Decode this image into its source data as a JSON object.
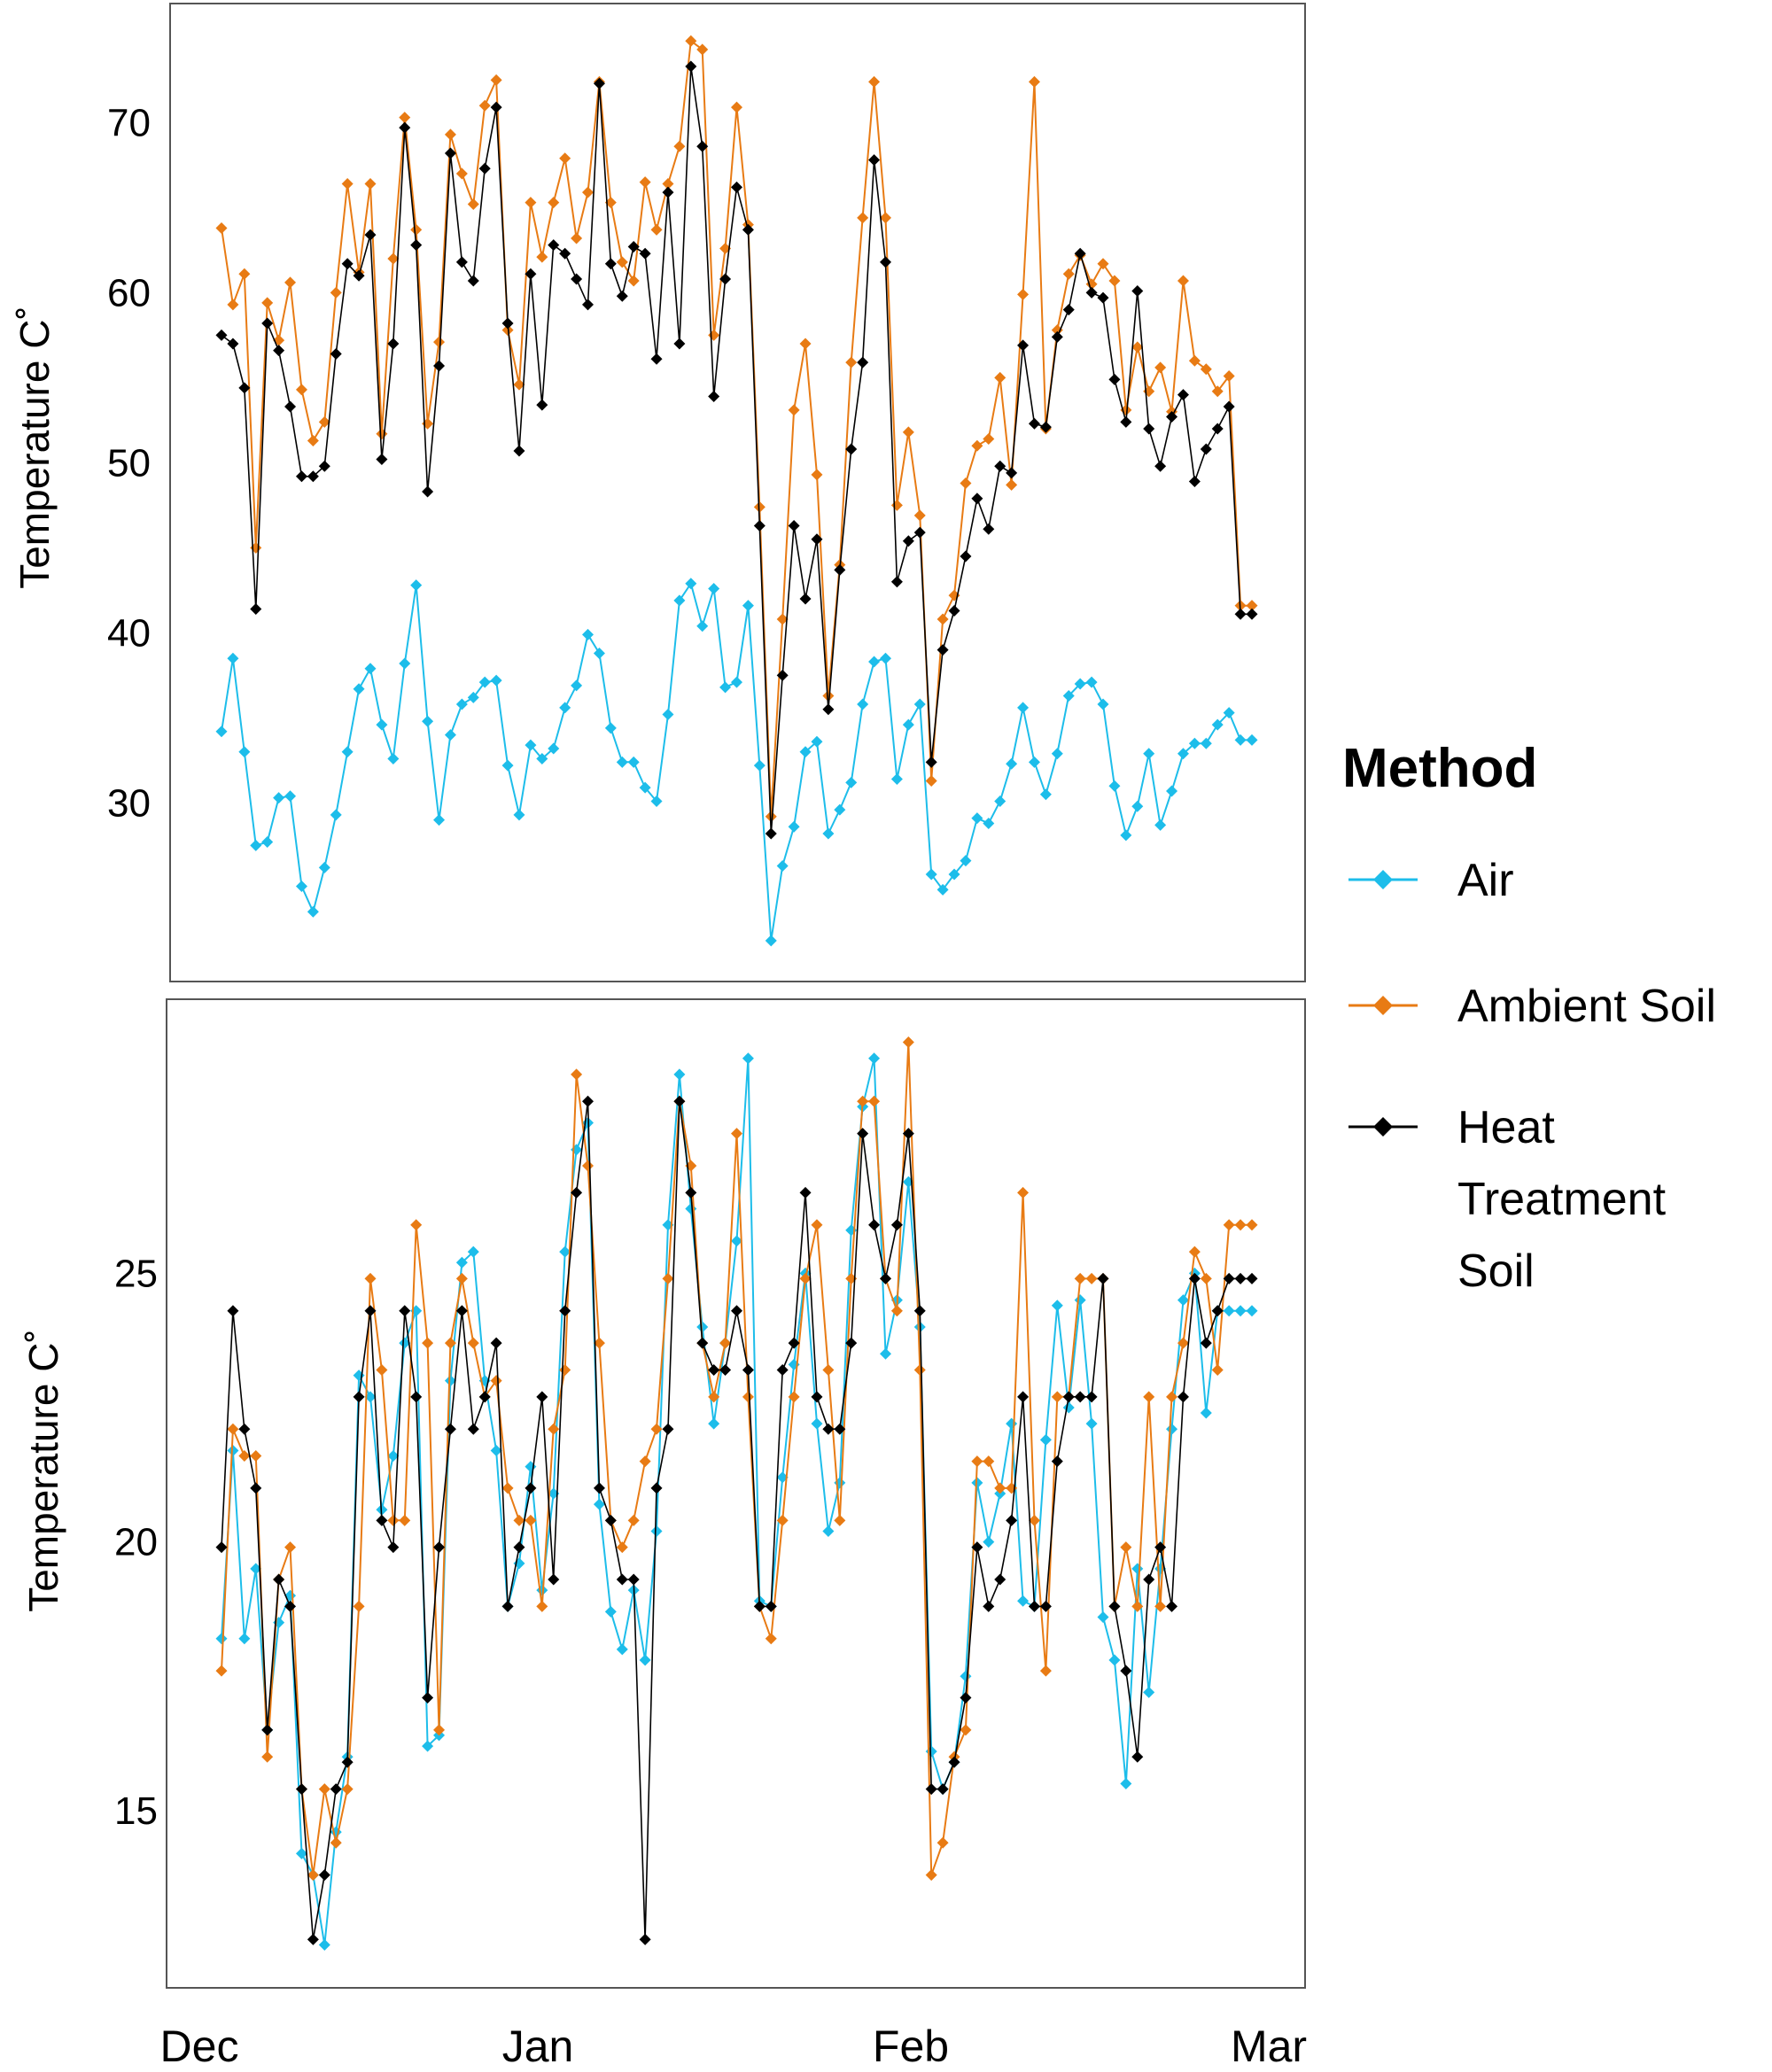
{
  "legend": {
    "title": "Method",
    "items": [
      {
        "lines": [
          "Air"
        ],
        "color": "#1DBDEA",
        "icon": "diamond-marker"
      },
      {
        "lines": [
          "Ambient Soil"
        ],
        "color": "#E87B14",
        "icon": "diamond-marker"
      },
      {
        "lines": [
          "Heat",
          "Treatment",
          "Soil"
        ],
        "color": "#000000",
        "icon": "diamond-marker"
      }
    ]
  },
  "x_axis": {
    "ticks": [
      "Dec",
      "Jan",
      "Feb",
      "Mar"
    ]
  },
  "chart_data": [
    {
      "type": "line",
      "panel": "top",
      "ylabel": "Temperature C˚",
      "yticks": [
        30,
        40,
        50,
        60,
        70
      ],
      "ylim": [
        19.5,
        77
      ],
      "x_days": [
        0,
        1,
        2,
        3,
        4,
        5,
        6,
        7,
        8,
        9,
        10,
        11,
        12,
        13,
        14,
        15,
        16,
        17,
        18,
        19,
        20,
        21,
        22,
        23,
        24,
        25,
        26,
        27,
        28,
        29,
        30,
        31,
        32,
        33,
        34,
        35,
        36,
        37,
        38,
        39,
        40,
        41,
        42,
        43,
        44,
        45,
        46,
        47,
        48,
        49,
        50,
        51,
        52,
        53,
        54,
        55,
        56,
        57,
        58,
        59,
        60,
        61,
        62,
        63,
        64,
        65,
        66,
        67,
        68,
        69,
        70,
        71,
        72,
        73,
        74,
        75,
        76,
        77,
        78,
        79,
        80,
        81,
        82,
        83,
        84,
        85,
        86,
        87,
        88,
        89,
        90
      ],
      "series": [
        {
          "name": "Air",
          "color": "#1DBDEA",
          "values": [
            34.2,
            38.5,
            33.0,
            27.5,
            27.7,
            30.3,
            30.4,
            25.1,
            23.6,
            26.2,
            29.3,
            33.0,
            36.7,
            37.9,
            34.6,
            32.6,
            38.2,
            42.8,
            34.8,
            29.0,
            34.0,
            35.8,
            36.2,
            37.1,
            37.2,
            32.2,
            29.3,
            33.4,
            32.6,
            33.2,
            35.6,
            36.9,
            39.9,
            38.8,
            34.4,
            32.4,
            32.4,
            30.9,
            30.1,
            35.2,
            41.9,
            42.9,
            40.4,
            42.6,
            36.8,
            37.1,
            41.6,
            32.2,
            21.9,
            26.3,
            28.6,
            33.0,
            33.6,
            28.2,
            29.6,
            31.2,
            35.8,
            38.3,
            38.5,
            31.4,
            34.6,
            35.8,
            25.8,
            24.9,
            25.8,
            26.6,
            29.1,
            28.8,
            30.1,
            32.3,
            35.6,
            32.4,
            30.5,
            32.9,
            36.3,
            37.0,
            37.1,
            35.8,
            31.0,
            28.1,
            29.8,
            32.9,
            28.7,
            30.7,
            32.9,
            33.5,
            33.5,
            34.6,
            35.3,
            33.7,
            33.7
          ]
        },
        {
          "name": "Ambient Soil",
          "color": "#E87B14",
          "values": [
            63.8,
            59.3,
            61.1,
            45.0,
            59.4,
            57.2,
            60.6,
            54.3,
            51.3,
            52.4,
            60.0,
            66.4,
            61.2,
            66.4,
            51.7,
            62.0,
            70.3,
            63.7,
            52.3,
            57.1,
            69.3,
            67.0,
            65.2,
            71.0,
            72.5,
            57.8,
            54.6,
            65.3,
            62.1,
            65.3,
            67.9,
            63.2,
            65.9,
            72.4,
            65.3,
            61.8,
            60.7,
            66.5,
            63.7,
            66.4,
            68.6,
            74.8,
            74.3,
            57.5,
            62.6,
            70.9,
            64.0,
            47.4,
            29.2,
            40.8,
            53.1,
            57.0,
            49.3,
            36.3,
            44.0,
            55.9,
            64.4,
            72.4,
            64.4,
            47.5,
            51.8,
            46.9,
            31.3,
            40.8,
            42.2,
            48.8,
            51.0,
            51.4,
            55.0,
            48.7,
            59.9,
            72.4,
            52.0,
            57.8,
            61.1,
            62.2,
            60.5,
            61.7,
            60.7,
            53.1,
            56.8,
            54.2,
            55.6,
            53.0,
            60.7,
            56.0,
            55.5,
            54.2,
            55.1,
            41.6,
            41.6
          ]
        },
        {
          "name": "Heat Treatment Soil",
          "color": "#000000",
          "values": [
            57.5,
            57.0,
            54.4,
            41.4,
            58.2,
            56.6,
            53.3,
            49.2,
            49.2,
            49.8,
            56.4,
            61.7,
            61.0,
            63.4,
            50.2,
            57.0,
            69.7,
            62.8,
            48.3,
            55.7,
            68.2,
            61.8,
            60.7,
            67.3,
            70.9,
            58.2,
            50.7,
            61.1,
            53.4,
            62.8,
            62.3,
            60.8,
            59.3,
            72.3,
            61.7,
            59.8,
            62.7,
            62.3,
            56.1,
            65.9,
            57.0,
            73.3,
            68.6,
            53.9,
            60.8,
            66.2,
            63.7,
            46.3,
            28.2,
            37.5,
            46.3,
            42.0,
            45.5,
            35.5,
            43.7,
            50.8,
            55.9,
            67.8,
            61.8,
            43.0,
            45.4,
            45.9,
            32.4,
            39.0,
            41.3,
            44.5,
            47.9,
            46.1,
            49.8,
            49.4,
            56.9,
            52.3,
            52.1,
            57.4,
            59.0,
            62.3,
            60.0,
            59.7,
            54.9,
            52.4,
            60.1,
            52.0,
            49.8,
            52.7,
            54.0,
            48.9,
            50.8,
            52.0,
            53.3,
            41.1,
            41.1
          ]
        }
      ]
    },
    {
      "type": "line",
      "panel": "bottom",
      "ylabel": "Temperature C˚",
      "yticks": [
        15,
        20,
        25
      ],
      "ylim": [
        11.7,
        30.1
      ],
      "x_days": [
        0,
        1,
        2,
        3,
        4,
        5,
        6,
        7,
        8,
        9,
        10,
        11,
        12,
        13,
        14,
        15,
        16,
        17,
        18,
        19,
        20,
        21,
        22,
        23,
        24,
        25,
        26,
        27,
        28,
        29,
        30,
        31,
        32,
        33,
        34,
        35,
        36,
        37,
        38,
        39,
        40,
        41,
        42,
        43,
        44,
        45,
        46,
        47,
        48,
        49,
        50,
        51,
        52,
        53,
        54,
        55,
        56,
        57,
        58,
        59,
        60,
        61,
        62,
        63,
        64,
        65,
        66,
        67,
        68,
        69,
        70,
        71,
        72,
        73,
        74,
        75,
        76,
        77,
        78,
        79,
        80,
        81,
        82,
        83,
        84,
        85,
        86,
        87,
        88,
        89,
        90
      ],
      "series": [
        {
          "name": "Air",
          "color": "#1DBDEA",
          "values": [
            18.2,
            21.7,
            18.2,
            19.5,
            16.5,
            18.5,
            19.0,
            14.2,
            13.8,
            12.5,
            14.6,
            16.0,
            23.1,
            22.7,
            20.6,
            21.6,
            23.7,
            24.3,
            16.2,
            16.4,
            23.0,
            25.2,
            25.4,
            23.0,
            21.7,
            18.8,
            19.6,
            21.4,
            19.1,
            20.9,
            25.4,
            27.3,
            27.8,
            20.7,
            18.7,
            18.0,
            19.1,
            17.8,
            20.2,
            25.9,
            28.7,
            26.2,
            24.0,
            22.2,
            23.7,
            25.6,
            29.0,
            18.9,
            18.8,
            21.2,
            23.3,
            25.0,
            22.2,
            20.2,
            21.1,
            25.8,
            28.1,
            29.0,
            23.5,
            24.5,
            26.7,
            24.0,
            16.1,
            15.4,
            15.9,
            17.5,
            21.1,
            20.0,
            20.9,
            22.2,
            18.9,
            18.8,
            21.9,
            24.4,
            22.5,
            24.5,
            22.2,
            18.6,
            17.8,
            15.5,
            19.5,
            17.2,
            19.5,
            22.1,
            24.5,
            25.0,
            22.4,
            24.3,
            24.3,
            24.3,
            24.3
          ]
        },
        {
          "name": "Ambient Soil",
          "color": "#E87B14",
          "values": [
            17.6,
            22.1,
            21.6,
            21.6,
            16.0,
            19.3,
            19.9,
            15.4,
            13.8,
            15.4,
            14.4,
            15.4,
            18.8,
            24.9,
            23.2,
            20.4,
            20.4,
            25.9,
            23.7,
            16.5,
            23.7,
            24.9,
            23.7,
            22.7,
            23.0,
            21.0,
            20.4,
            20.4,
            18.8,
            22.1,
            23.2,
            28.7,
            27.0,
            23.7,
            20.4,
            19.9,
            20.4,
            21.5,
            22.1,
            24.9,
            28.2,
            27.0,
            23.7,
            22.7,
            23.7,
            27.6,
            22.7,
            18.8,
            18.2,
            20.4,
            22.7,
            24.9,
            25.9,
            23.2,
            20.4,
            24.9,
            28.2,
            28.2,
            24.9,
            24.3,
            29.3,
            23.2,
            13.8,
            14.4,
            16.0,
            16.5,
            21.5,
            21.5,
            21.0,
            21.0,
            26.5,
            20.4,
            17.6,
            22.7,
            22.7,
            24.9,
            24.9,
            24.9,
            18.8,
            19.9,
            18.8,
            22.7,
            18.8,
            22.7,
            23.7,
            25.4,
            24.9,
            23.2,
            25.9,
            25.9,
            25.9
          ]
        },
        {
          "name": "Heat Treatment Soil",
          "color": "#000000",
          "values": [
            19.9,
            24.3,
            22.1,
            21.0,
            16.5,
            19.3,
            18.8,
            15.4,
            12.6,
            13.8,
            15.4,
            15.9,
            22.7,
            24.3,
            20.4,
            19.9,
            24.3,
            22.7,
            17.1,
            19.9,
            22.1,
            24.3,
            22.1,
            22.7,
            23.7,
            18.8,
            19.9,
            21.0,
            22.7,
            19.3,
            24.3,
            26.5,
            28.2,
            21.0,
            20.4,
            19.3,
            19.3,
            12.6,
            21.0,
            22.1,
            28.2,
            26.5,
            23.7,
            23.2,
            23.2,
            24.3,
            23.2,
            18.8,
            18.8,
            23.2,
            23.7,
            26.5,
            22.7,
            22.1,
            22.1,
            23.7,
            27.6,
            25.9,
            24.9,
            25.9,
            27.6,
            24.3,
            15.4,
            15.4,
            15.9,
            17.1,
            19.9,
            18.8,
            19.3,
            20.4,
            22.7,
            18.8,
            18.8,
            21.5,
            22.7,
            22.7,
            22.7,
            24.9,
            18.8,
            17.6,
            16.0,
            19.3,
            19.9,
            18.8,
            22.7,
            24.9,
            23.7,
            24.3,
            24.9,
            24.9,
            24.9
          ]
        }
      ]
    }
  ]
}
